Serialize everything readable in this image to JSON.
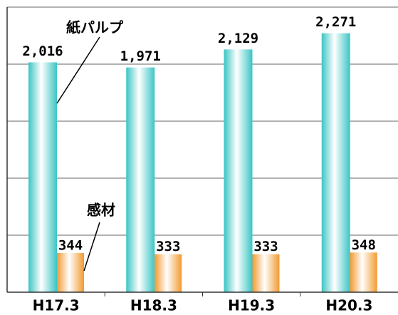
{
  "chart_data": {
    "type": "bar",
    "categories": [
      "H17.3",
      "H18.3",
      "H19.3",
      "H20.3"
    ],
    "series": [
      {
        "name": "紙パルプ",
        "color": "#3cc4c4",
        "values": [
          2016,
          1971,
          2129,
          2271
        ],
        "value_labels": [
          "2,016",
          "1,971",
          "2,129",
          "2,271"
        ]
      },
      {
        "name": "感材",
        "color": "#f29a30",
        "values": [
          344,
          333,
          333,
          348
        ]
      }
    ],
    "ylim": [
      0,
      2500
    ],
    "yticks": [
      0,
      500,
      1000,
      1500,
      2000,
      2500
    ],
    "grid": true
  }
}
